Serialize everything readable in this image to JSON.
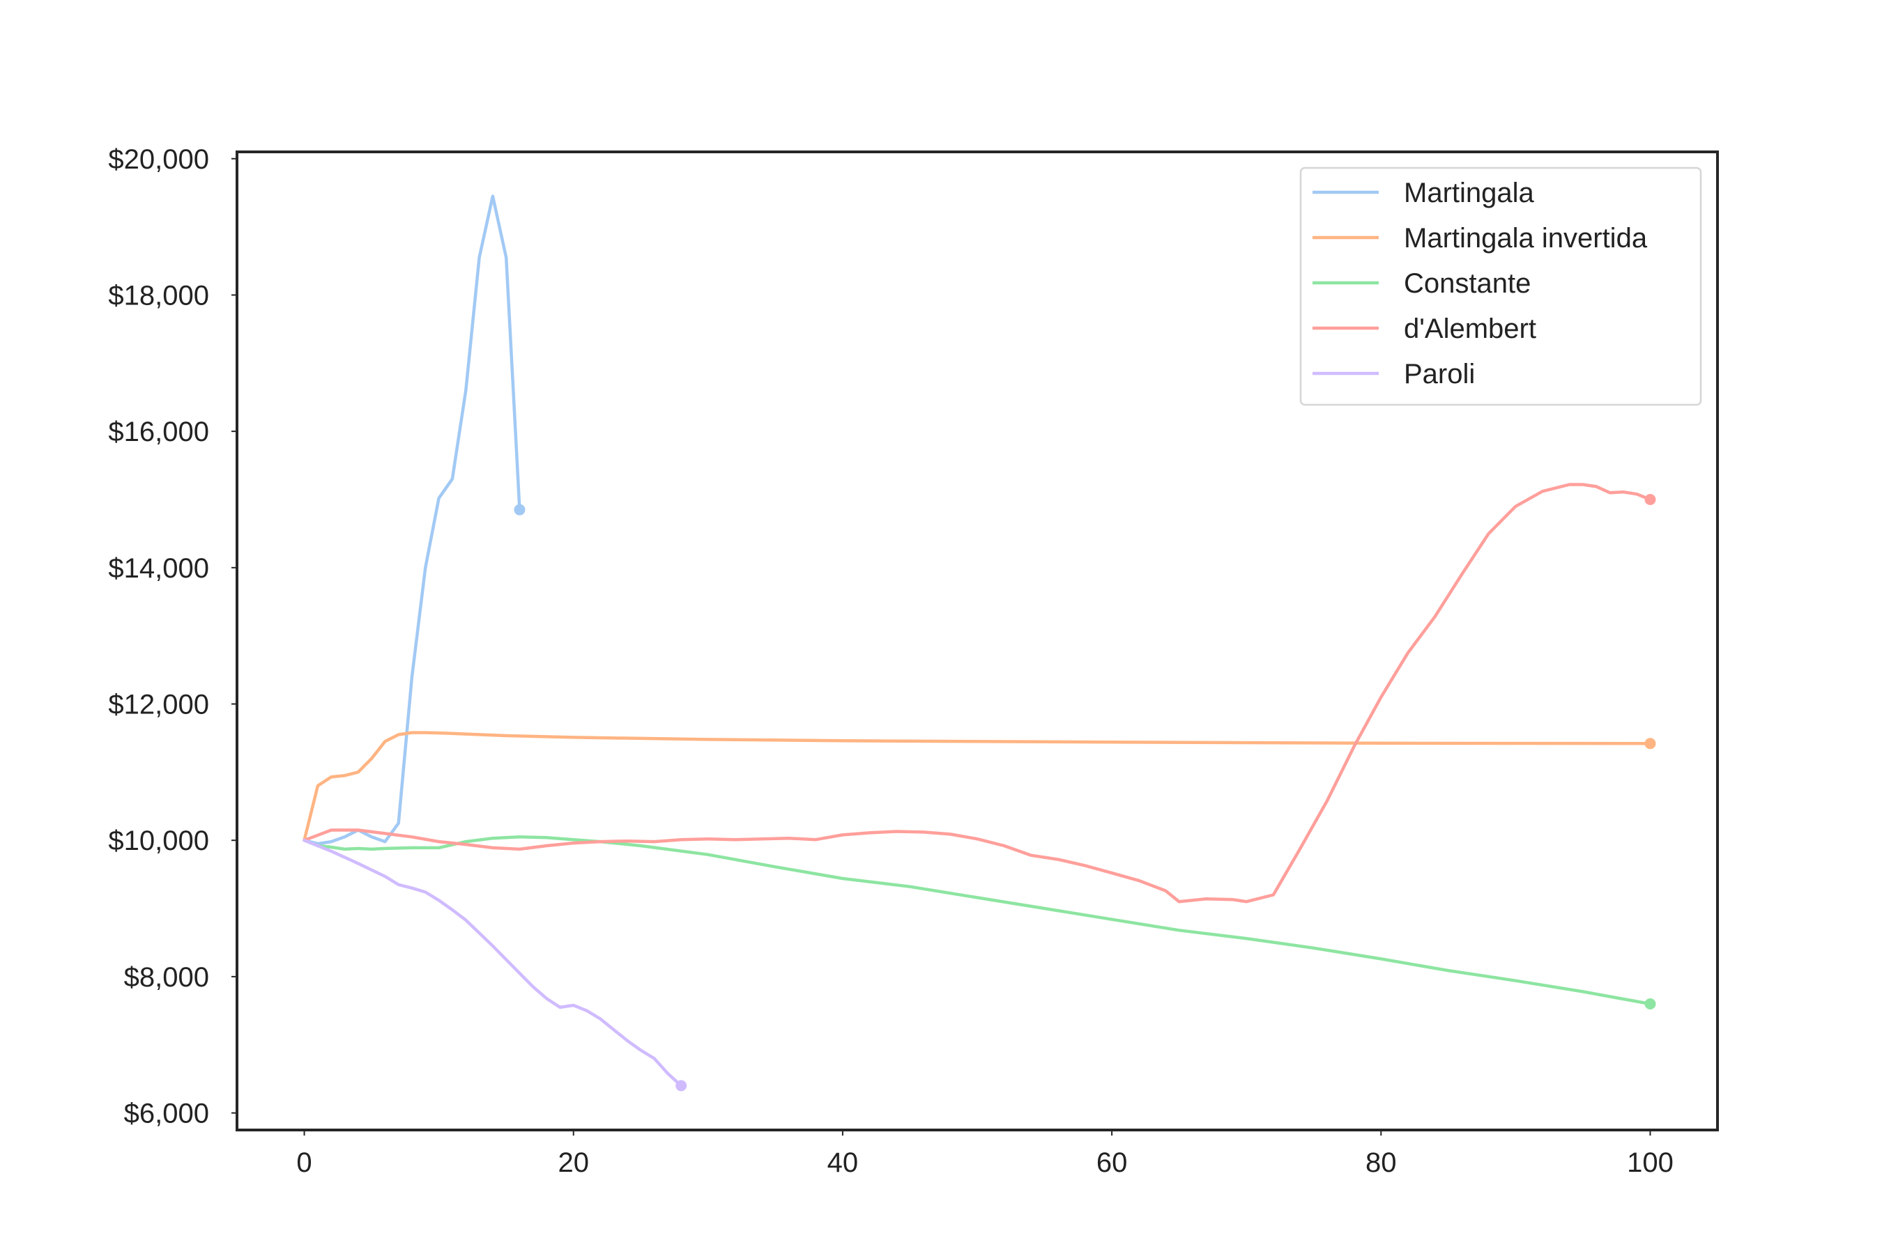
{
  "chart_data": {
    "type": "line",
    "title": "",
    "xlabel": "",
    "ylabel": "",
    "xlim": [
      -5,
      105
    ],
    "ylim": [
      5750,
      20100
    ],
    "x_ticks": [
      0,
      20,
      40,
      60,
      80,
      100
    ],
    "x_tick_labels": [
      "0",
      "20",
      "40",
      "60",
      "80",
      "100"
    ],
    "y_ticks": [
      6000,
      8000,
      10000,
      12000,
      14000,
      16000,
      18000,
      20000
    ],
    "y_tick_labels": [
      "$6,000",
      "$8,000",
      "$10,000",
      "$12,000",
      "$14,000",
      "$16,000",
      "$18,000",
      "$20,000"
    ],
    "grid": false,
    "legend_position": "top-right",
    "series": [
      {
        "name": "Martingala",
        "color": "#a1c9f4",
        "end_marker": true,
        "points": [
          [
            0,
            10000
          ],
          [
            1,
            9950
          ],
          [
            2,
            9980
          ],
          [
            3,
            10050
          ],
          [
            4,
            10150
          ],
          [
            5,
            10050
          ],
          [
            6,
            9980
          ],
          [
            7,
            10250
          ],
          [
            8,
            12400
          ],
          [
            9,
            14000
          ],
          [
            10,
            15020
          ],
          [
            11,
            15300
          ],
          [
            12,
            16600
          ],
          [
            13,
            18550
          ],
          [
            14,
            19450
          ],
          [
            15,
            18550
          ],
          [
            16,
            14850
          ]
        ]
      },
      {
        "name": "Martingala invertida",
        "color": "#ffb482",
        "end_marker": true,
        "points": [
          [
            0,
            10000
          ],
          [
            1,
            10800
          ],
          [
            2,
            10930
          ],
          [
            3,
            10950
          ],
          [
            4,
            11000
          ],
          [
            5,
            11200
          ],
          [
            6,
            11450
          ],
          [
            7,
            11550
          ],
          [
            8,
            11580
          ],
          [
            9,
            11580
          ],
          [
            10,
            11575
          ],
          [
            12,
            11560
          ],
          [
            15,
            11535
          ],
          [
            20,
            11510
          ],
          [
            30,
            11480
          ],
          [
            40,
            11460
          ],
          [
            60,
            11440
          ],
          [
            80,
            11425
          ],
          [
            100,
            11420
          ]
        ]
      },
      {
        "name": "Constante",
        "color": "#8de5a1",
        "end_marker": true,
        "points": [
          [
            0,
            10000
          ],
          [
            1,
            9920
          ],
          [
            2,
            9900
          ],
          [
            3,
            9870
          ],
          [
            4,
            9880
          ],
          [
            5,
            9870
          ],
          [
            6,
            9880
          ],
          [
            8,
            9890
          ],
          [
            10,
            9890
          ],
          [
            12,
            9980
          ],
          [
            14,
            10030
          ],
          [
            16,
            10050
          ],
          [
            18,
            10040
          ],
          [
            20,
            10010
          ],
          [
            22,
            9980
          ],
          [
            25,
            9920
          ],
          [
            30,
            9790
          ],
          [
            35,
            9610
          ],
          [
            40,
            9440
          ],
          [
            45,
            9320
          ],
          [
            50,
            9160
          ],
          [
            55,
            9000
          ],
          [
            60,
            8840
          ],
          [
            65,
            8680
          ],
          [
            70,
            8560
          ],
          [
            75,
            8420
          ],
          [
            80,
            8260
          ],
          [
            85,
            8090
          ],
          [
            90,
            7940
          ],
          [
            95,
            7780
          ],
          [
            100,
            7600
          ]
        ]
      },
      {
        "name": "d'Alembert",
        "color": "#ff9f9b",
        "end_marker": true,
        "points": [
          [
            0,
            10000
          ],
          [
            2,
            10150
          ],
          [
            4,
            10150
          ],
          [
            6,
            10100
          ],
          [
            8,
            10050
          ],
          [
            10,
            9980
          ],
          [
            12,
            9940
          ],
          [
            14,
            9890
          ],
          [
            16,
            9870
          ],
          [
            18,
            9920
          ],
          [
            20,
            9960
          ],
          [
            22,
            9980
          ],
          [
            24,
            9990
          ],
          [
            26,
            9980
          ],
          [
            28,
            10010
          ],
          [
            30,
            10020
          ],
          [
            32,
            10010
          ],
          [
            34,
            10020
          ],
          [
            36,
            10030
          ],
          [
            38,
            10010
          ],
          [
            40,
            10080
          ],
          [
            42,
            10110
          ],
          [
            44,
            10130
          ],
          [
            46,
            10120
          ],
          [
            48,
            10090
          ],
          [
            50,
            10020
          ],
          [
            52,
            9920
          ],
          [
            54,
            9780
          ],
          [
            56,
            9720
          ],
          [
            58,
            9630
          ],
          [
            60,
            9520
          ],
          [
            62,
            9410
          ],
          [
            64,
            9260
          ],
          [
            65,
            9100
          ],
          [
            67,
            9140
          ],
          [
            69,
            9130
          ],
          [
            70,
            9100
          ],
          [
            72,
            9200
          ],
          [
            74,
            9880
          ],
          [
            76,
            10580
          ],
          [
            78,
            11380
          ],
          [
            80,
            12100
          ],
          [
            82,
            12750
          ],
          [
            84,
            13280
          ],
          [
            86,
            13900
          ],
          [
            88,
            14500
          ],
          [
            90,
            14900
          ],
          [
            92,
            15120
          ],
          [
            94,
            15220
          ],
          [
            95,
            15220
          ],
          [
            96,
            15190
          ],
          [
            97,
            15100
          ],
          [
            98,
            15110
          ],
          [
            99,
            15080
          ],
          [
            100,
            15000
          ]
        ]
      },
      {
        "name": "Paroli",
        "color": "#d0bbff",
        "end_marker": true,
        "points": [
          [
            0,
            10000
          ],
          [
            2,
            9840
          ],
          [
            4,
            9660
          ],
          [
            6,
            9470
          ],
          [
            7,
            9350
          ],
          [
            8,
            9300
          ],
          [
            9,
            9240
          ],
          [
            10,
            9120
          ],
          [
            11,
            8980
          ],
          [
            12,
            8830
          ],
          [
            13,
            8640
          ],
          [
            14,
            8450
          ],
          [
            15,
            8250
          ],
          [
            16,
            8050
          ],
          [
            17,
            7850
          ],
          [
            18,
            7680
          ],
          [
            19,
            7550
          ],
          [
            20,
            7580
          ],
          [
            21,
            7500
          ],
          [
            22,
            7380
          ],
          [
            23,
            7220
          ],
          [
            24,
            7060
          ],
          [
            25,
            6920
          ],
          [
            26,
            6800
          ],
          [
            27,
            6580
          ],
          [
            28,
            6400
          ]
        ]
      }
    ]
  }
}
